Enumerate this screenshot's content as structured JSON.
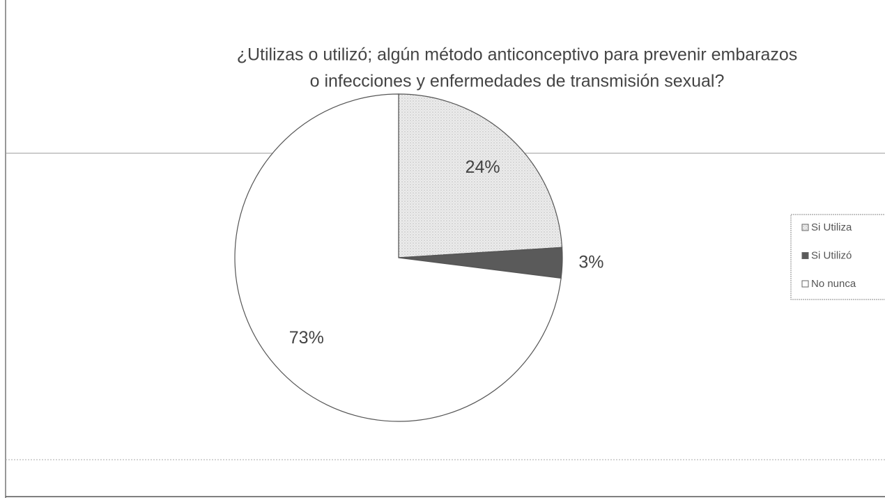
{
  "chart_data": {
    "type": "pie",
    "title": [
      "¿Utilizas o utilizó; algún método anticonceptivo para prevenir embarazos",
      "o infecciones y  enfermedades de transmisión sexual?"
    ],
    "categories": [
      "Si Utiliza",
      "Si Utilizó",
      "No nunca"
    ],
    "values": [
      24,
      3,
      73
    ],
    "value_labels": [
      "24%",
      "3%",
      "73%"
    ],
    "colors": [
      "#e6e6e6",
      "#5a5a5a",
      "#ffffff"
    ],
    "legend": "right"
  }
}
